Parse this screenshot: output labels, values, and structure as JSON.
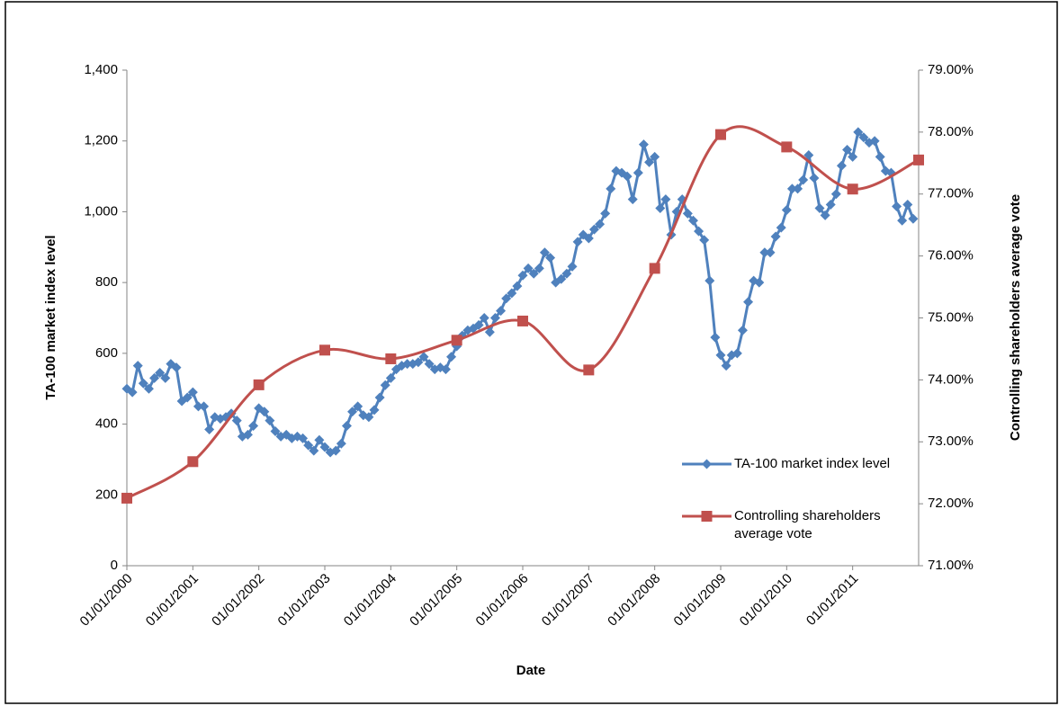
{
  "chart_data": {
    "type": "line",
    "x_label": "Date",
    "y_label": "TA-100 market index level",
    "y2_label": "Controlling shareholders average vote",
    "xlim": [
      "2000-01",
      "2012-01"
    ],
    "xticks": [
      {
        "value": "2000-01",
        "label": "01/01/2000"
      },
      {
        "value": "2001-01",
        "label": "01/01/2001"
      },
      {
        "value": "2002-01",
        "label": "01/01/2002"
      },
      {
        "value": "2003-01",
        "label": "01/01/2003"
      },
      {
        "value": "2004-01",
        "label": "01/01/2004"
      },
      {
        "value": "2005-01",
        "label": "01/01/2005"
      },
      {
        "value": "2006-01",
        "label": "01/01/2006"
      },
      {
        "value": "2007-01",
        "label": "01/01/2007"
      },
      {
        "value": "2008-01",
        "label": "01/01/2008"
      },
      {
        "value": "2009-01",
        "label": "01/01/2009"
      },
      {
        "value": "2010-01",
        "label": "01/01/2010"
      },
      {
        "value": "2011-01",
        "label": "01/01/2011"
      }
    ],
    "ylim": [
      0,
      1400
    ],
    "yticks": [
      0,
      200,
      400,
      600,
      800,
      {
        "value": 1000,
        "label": "1,000"
      },
      {
        "value": 1200,
        "label": "1,200"
      },
      {
        "value": 1400,
        "label": "1,400"
      }
    ],
    "y2lim": [
      71,
      79
    ],
    "y2ticks": [
      {
        "value": 71,
        "label": "71.00%"
      },
      {
        "value": 72,
        "label": "72.00%"
      },
      {
        "value": 73,
        "label": "73.00%"
      },
      {
        "value": 74,
        "label": "74.00%"
      },
      {
        "value": 75,
        "label": "75.00%"
      },
      {
        "value": 76,
        "label": "76.00%"
      },
      {
        "value": 77,
        "label": "77.00%"
      },
      {
        "value": 78,
        "label": "78.00%"
      },
      {
        "value": 79,
        "label": "79.00%"
      }
    ],
    "legend": "lower right",
    "grid": false,
    "series": [
      {
        "name": "TA-100 market index level",
        "color": "#4f81bd",
        "marker": "diamond",
        "smooth": false,
        "x": [
          "2000-01",
          "2000-02",
          "2000-03",
          "2000-04",
          "2000-05",
          "2000-06",
          "2000-07",
          "2000-08",
          "2000-09",
          "2000-10",
          "2000-11",
          "2000-12",
          "2001-01",
          "2001-02",
          "2001-03",
          "2001-04",
          "2001-05",
          "2001-06",
          "2001-07",
          "2001-08",
          "2001-09",
          "2001-10",
          "2001-11",
          "2001-12",
          "2002-01",
          "2002-02",
          "2002-03",
          "2002-04",
          "2002-05",
          "2002-06",
          "2002-07",
          "2002-08",
          "2002-09",
          "2002-10",
          "2002-11",
          "2002-12",
          "2003-01",
          "2003-02",
          "2003-03",
          "2003-04",
          "2003-05",
          "2003-06",
          "2003-07",
          "2003-08",
          "2003-09",
          "2003-10",
          "2003-11",
          "2003-12",
          "2004-01",
          "2004-02",
          "2004-03",
          "2004-04",
          "2004-05",
          "2004-06",
          "2004-07",
          "2004-08",
          "2004-09",
          "2004-10",
          "2004-11",
          "2004-12",
          "2005-01",
          "2005-02",
          "2005-03",
          "2005-04",
          "2005-05",
          "2005-06",
          "2005-07",
          "2005-08",
          "2005-09",
          "2005-10",
          "2005-11",
          "2005-12",
          "2006-01",
          "2006-02",
          "2006-03",
          "2006-04",
          "2006-05",
          "2006-06",
          "2006-07",
          "2006-08",
          "2006-09",
          "2006-10",
          "2006-11",
          "2006-12",
          "2007-01",
          "2007-02",
          "2007-03",
          "2007-04",
          "2007-05",
          "2007-06",
          "2007-07",
          "2007-08",
          "2007-09",
          "2007-10",
          "2007-11",
          "2007-12",
          "2008-01",
          "2008-02",
          "2008-03",
          "2008-04",
          "2008-05",
          "2008-06",
          "2008-07",
          "2008-08",
          "2008-09",
          "2008-10",
          "2008-11",
          "2008-12",
          "2009-01",
          "2009-02",
          "2009-03",
          "2009-04",
          "2009-05",
          "2009-06",
          "2009-07",
          "2009-08",
          "2009-09",
          "2009-10",
          "2009-11",
          "2009-12",
          "2010-01",
          "2010-02",
          "2010-03",
          "2010-04",
          "2010-05",
          "2010-06",
          "2010-07",
          "2010-08",
          "2010-09",
          "2010-10",
          "2010-11",
          "2010-12",
          "2011-01",
          "2011-02",
          "2011-03",
          "2011-04",
          "2011-05",
          "2011-06",
          "2011-07",
          "2011-08",
          "2011-09",
          "2011-10",
          "2011-11",
          "2011-12"
        ],
        "values": [
          500,
          490,
          565,
          515,
          500,
          530,
          545,
          530,
          570,
          560,
          465,
          475,
          490,
          450,
          450,
          385,
          420,
          415,
          420,
          430,
          410,
          365,
          370,
          395,
          445,
          435,
          410,
          380,
          365,
          370,
          360,
          365,
          360,
          340,
          325,
          355,
          335,
          320,
          325,
          345,
          395,
          435,
          450,
          425,
          420,
          440,
          475,
          510,
          530,
          555,
          565,
          570,
          570,
          575,
          590,
          570,
          555,
          560,
          555,
          590,
          620,
          650,
          665,
          670,
          680,
          700,
          660,
          700,
          720,
          755,
          770,
          790,
          820,
          840,
          825,
          840,
          885,
          870,
          800,
          810,
          825,
          845,
          915,
          935,
          925,
          950,
          965,
          995,
          1065,
          1115,
          1110,
          1100,
          1035,
          1110,
          1190,
          1140,
          1155,
          1010,
          1035,
          935,
          1000,
          1035,
          995,
          975,
          945,
          920,
          805,
          645,
          595,
          565,
          595,
          600,
          665,
          745,
          805,
          800,
          885,
          885,
          930,
          955,
          1005,
          1065,
          1065,
          1090,
          1160,
          1095,
          1010,
          990,
          1020,
          1050,
          1130,
          1175,
          1155,
          1225,
          1210,
          1195,
          1200,
          1155,
          1115,
          1110,
          1015,
          975,
          1020,
          980
        ]
      },
      {
        "name": "Controlling shareholders average vote",
        "color": "#c0504d",
        "marker": "square",
        "smooth": true,
        "axis": "y2",
        "x": [
          "2000-01",
          "2001-01",
          "2002-01",
          "2003-01",
          "2004-01",
          "2005-01",
          "2006-01",
          "2007-01",
          "2008-01",
          "2009-01",
          "2010-01",
          "2011-01",
          "2012-01"
        ],
        "values": [
          72.09,
          72.68,
          73.92,
          74.48,
          74.34,
          74.64,
          74.95,
          74.16,
          75.8,
          77.96,
          77.76,
          77.08,
          77.55
        ]
      }
    ]
  }
}
